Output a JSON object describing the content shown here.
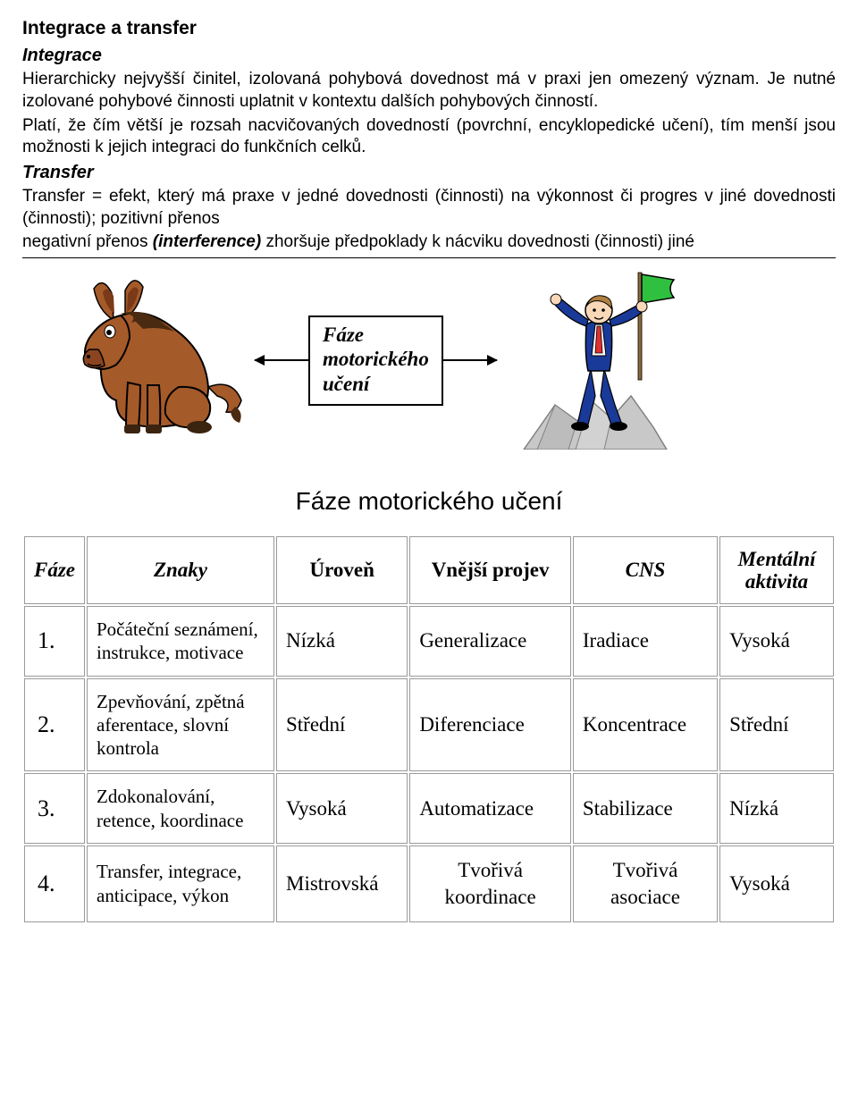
{
  "doc": {
    "title": "Integrace a transfer",
    "sec1_heading": "Integrace",
    "sec1_p1": "Hierarchicky nejvyšší činitel, izolovaná pohybová dovednost má v praxi jen omezený význam. Je nutné izolované pohybové činnosti uplatnit v kontextu dalších pohybových činností.",
    "sec1_p2": "Platí, že čím větší je rozsah nacvičovaných dovedností (povrchní, encyklopedické učení), tím menší jsou možnosti k jejich integraci do funkčních celků.",
    "sec2_heading": "Transfer",
    "sec2_p1": "Transfer = efekt, který má praxe v jedné dovednosti (činnosti) na výkonnost či progres v jiné dovednosti (činnosti); pozitivní přenos",
    "sec2_p2a": "negativní přenos ",
    "sec2_p2b": "(interference)",
    "sec2_p2c": " zhoršuje předpoklady k nácviku dovednosti (činnosti) jiné"
  },
  "diagram": {
    "box_line1": "Fáze",
    "box_line2": "motorického",
    "box_line3": "učení",
    "donkey": {
      "body_fill": "#a55a2a",
      "body_stroke": "#000000",
      "mane_fill": "#4a2a10",
      "hoof_fill": "#3a2410",
      "eye_fill": "#ffffff"
    },
    "man": {
      "suit_fill": "#1a3a9a",
      "shirt_fill": "#ffffff",
      "tie_fill": "#e03030",
      "skin_fill": "#f8d8b8",
      "hair_fill": "#b08040",
      "shoe_fill": "#000000",
      "flag_fill": "#30c040",
      "pole_fill": "#8a6a3a",
      "rock_fill": "#c8c8c8",
      "rock_stroke": "#808080"
    }
  },
  "table": {
    "title": "Fáze motorického učení",
    "headers": [
      "Fáze",
      "Znaky",
      "Úroveň",
      "Vnější projev",
      "CNS",
      "Mentální\naktivita"
    ],
    "rows": [
      {
        "num": "1.",
        "znaky": "Počáteční seznámení, instrukce, motivace",
        "uroven": "Nízká",
        "projev": "Generalizace",
        "cns": "Iradiace",
        "mental": "Vysoká"
      },
      {
        "num": "2.",
        "znaky": "Zpevňování, zpětná aferentace, slovní kontrola",
        "uroven": "Střední",
        "projev": "Diferenciace",
        "cns": "Koncentrace",
        "mental": "Střední"
      },
      {
        "num": "3.",
        "znaky": "Zdokonalování, retence, koordinace",
        "uroven": "Vysoká",
        "projev": "Automatizace",
        "cns": "Stabilizace",
        "mental": "Nízká"
      },
      {
        "num": "4.",
        "znaky": "Transfer, integrace, anticipace, výkon",
        "uroven": "Mistrovská",
        "projev": "Tvořivá koordinace",
        "cns": "Tvořivá asociace",
        "mental": "Vysoká"
      }
    ],
    "colors": {
      "border": "#9a9a9a"
    }
  }
}
